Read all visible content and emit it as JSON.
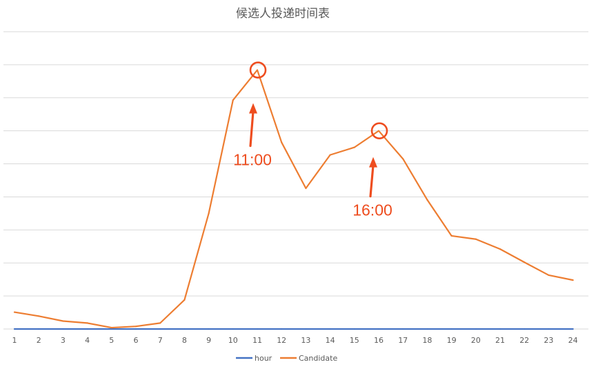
{
  "chart_data": {
    "type": "line",
    "title": "候选人投递时间表",
    "xlabel": "",
    "ylabel": "",
    "categories": [
      "1",
      "2",
      "3",
      "4",
      "5",
      "6",
      "7",
      "8",
      "9",
      "10",
      "11",
      "12",
      "13",
      "14",
      "15",
      "16",
      "17",
      "18",
      "19",
      "20",
      "21",
      "22",
      "23",
      "24"
    ],
    "series": [
      {
        "name": "hour",
        "color": "#4472c4",
        "values": [
          0,
          0,
          0,
          0,
          0,
          0,
          0,
          0,
          0,
          0,
          0,
          0,
          0,
          0,
          0,
          0,
          0,
          0,
          0,
          0,
          0,
          0,
          0,
          0
        ]
      },
      {
        "name": "Candidate",
        "color": "#ed7d31",
        "values": [
          5.1,
          3.9,
          2.4,
          1.8,
          0.4,
          0.8,
          1.8,
          8.8,
          35.0,
          69.3,
          78.4,
          56.5,
          42.6,
          52.7,
          55.0,
          60.0,
          51.5,
          39.1,
          28.2,
          27.2,
          24.2,
          20.2,
          16.3,
          14.8
        ]
      }
    ],
    "ylim": [
      0,
      90
    ],
    "y_gridlines": 9,
    "y_tick_labels_shown": false,
    "grid": true,
    "legend": "bottom",
    "annotations": [
      {
        "text": "11:00",
        "category": "11",
        "marker": "circle",
        "color": "#ee4d1f"
      },
      {
        "text": "16:00",
        "category": "16",
        "marker": "circle",
        "color": "#ee4d1f"
      }
    ]
  }
}
